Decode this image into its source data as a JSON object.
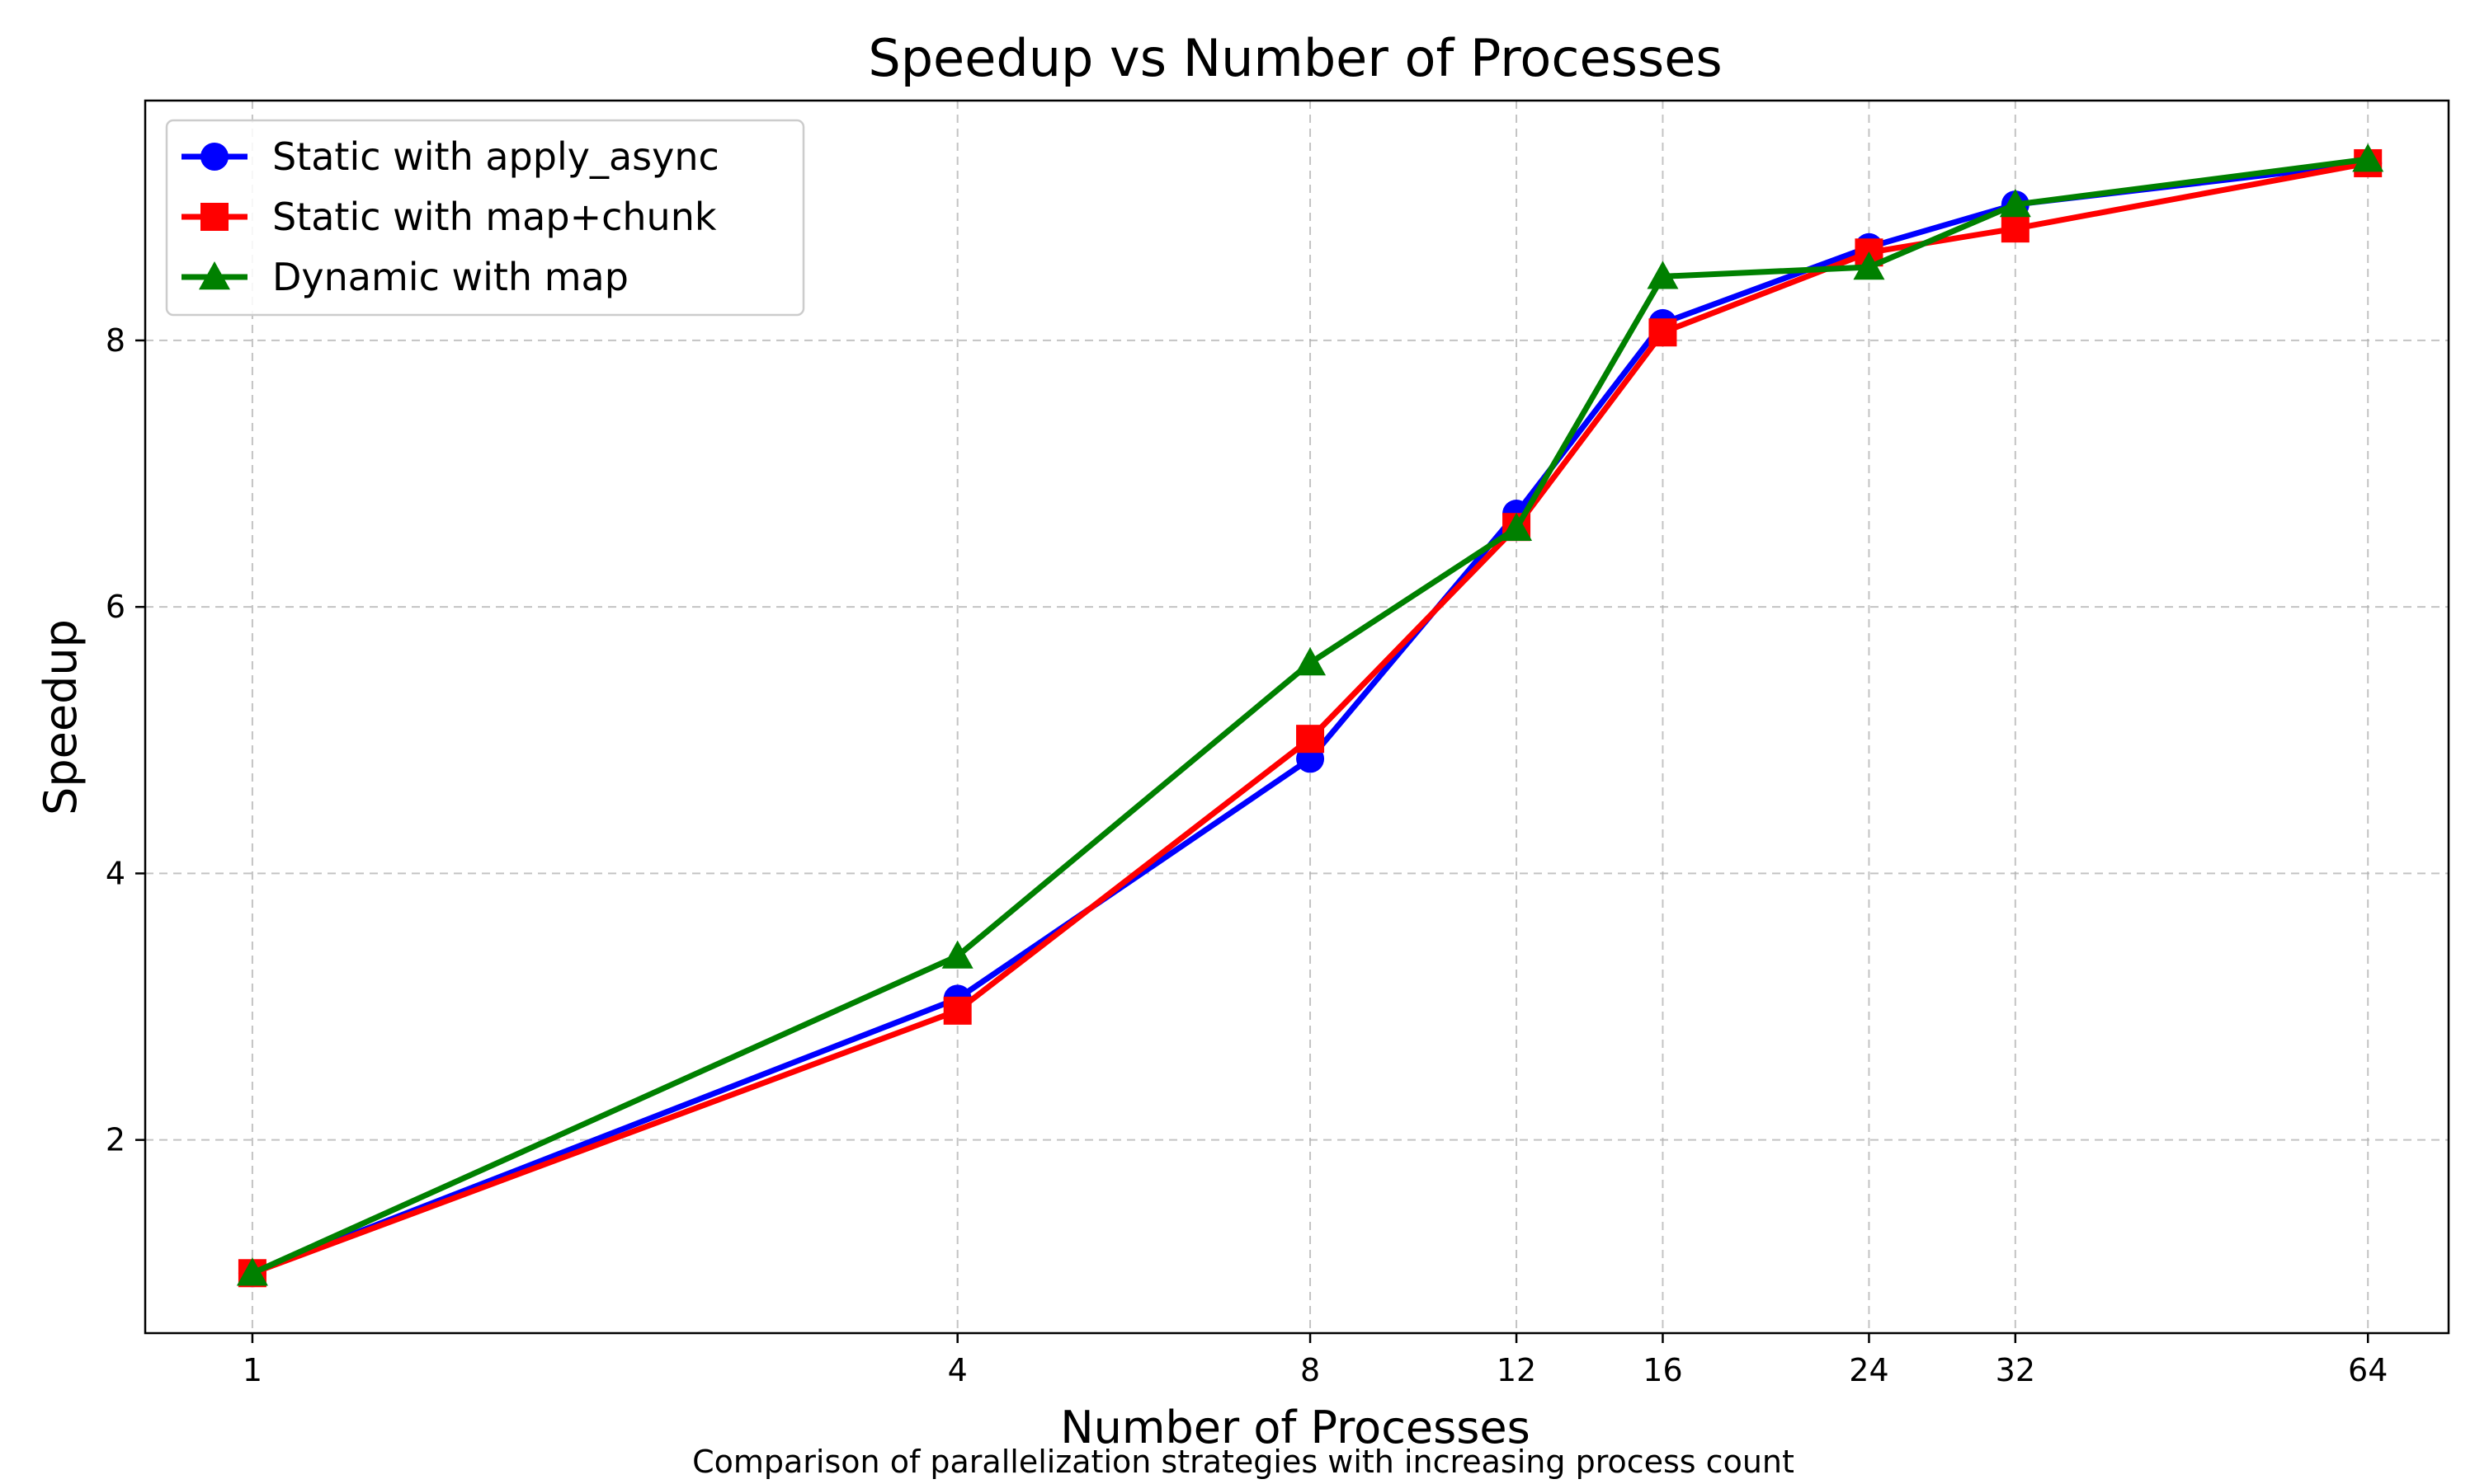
{
  "chart_data": {
    "type": "line",
    "title": "Speedup vs Number of Processes",
    "xlabel": "Number of Processes",
    "ylabel": "Speedup",
    "caption": "Comparison of parallelization strategies with increasing process count",
    "x_scale": "log2",
    "x": [
      1,
      4,
      8,
      12,
      16,
      24,
      32,
      64
    ],
    "x_tick_labels": [
      "1",
      "4",
      "8",
      "12",
      "16",
      "24",
      "32",
      "64"
    ],
    "xlim": [
      0.81,
      75
    ],
    "ylim": [
      0.55,
      9.8
    ],
    "y_ticks": [
      2,
      4,
      6,
      8
    ],
    "y_tick_labels": [
      "2",
      "4",
      "6",
      "8"
    ],
    "grid": true,
    "legend_position": "top-left",
    "series": [
      {
        "name": "Static with apply_async",
        "color": "#0000ff",
        "marker": "circle",
        "values": [
          1.0,
          3.06,
          4.86,
          6.7,
          8.13,
          8.7,
          9.02,
          9.33
        ]
      },
      {
        "name": "Static with map+chunk",
        "color": "#ff0000",
        "marker": "square",
        "values": [
          1.0,
          2.97,
          5.01,
          6.6,
          8.06,
          8.66,
          8.84,
          9.33
        ]
      },
      {
        "name": "Dynamic with map",
        "color": "#008000",
        "marker": "triangle",
        "values": [
          1.0,
          3.38,
          5.58,
          6.59,
          8.48,
          8.55,
          9.02,
          9.36
        ]
      }
    ]
  }
}
